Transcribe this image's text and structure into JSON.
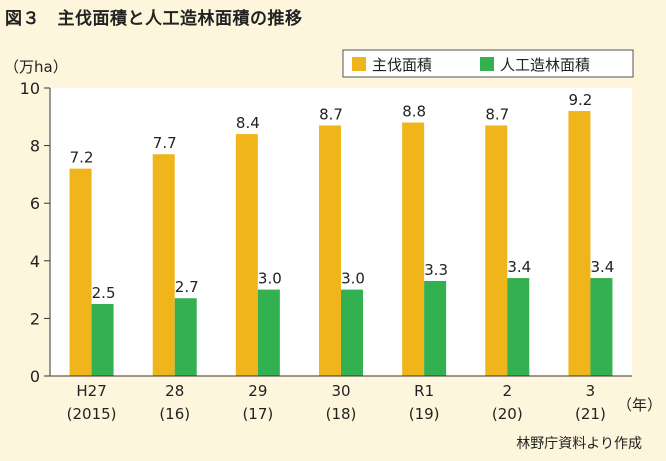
{
  "title": "図３　主伐面積と人工造林面積の推移",
  "source": "林野庁資料より作成",
  "colors": {
    "series1": "#f1b51c",
    "series2": "#33b04f",
    "plot_bg": "#ffffff",
    "page_bg": "#fdf6dc"
  },
  "chart_data": {
    "type": "bar",
    "title": "",
    "ylabel": "（万ha）",
    "xunit": "（年）",
    "ylim": [
      0,
      10
    ],
    "yticks": [
      0,
      2,
      4,
      6,
      8,
      10
    ],
    "categories": [
      {
        "line1": "H27",
        "line2": "(2015)"
      },
      {
        "line1": "28",
        "line2": "(16)"
      },
      {
        "line1": "29",
        "line2": "(17)"
      },
      {
        "line1": "30",
        "line2": "(18)"
      },
      {
        "line1": "R1",
        "line2": "(19)"
      },
      {
        "line1": "2",
        "line2": "(20)"
      },
      {
        "line1": "3",
        "line2": "(21)"
      }
    ],
    "series": [
      {
        "name": "主伐面積",
        "values": [
          7.2,
          7.7,
          8.4,
          8.7,
          8.8,
          8.7,
          9.2
        ],
        "labels": [
          "7.2",
          "7.7",
          "8.4",
          "8.7",
          "8.8",
          "8.7",
          "9.2"
        ]
      },
      {
        "name": "人工造林面積",
        "values": [
          2.5,
          2.7,
          3.0,
          3.0,
          3.3,
          3.4,
          3.4
        ],
        "labels": [
          "2.5",
          "2.7",
          "3.0",
          "3.0",
          "3.3",
          "3.4",
          "3.4"
        ]
      }
    ],
    "legend": "top-right"
  }
}
